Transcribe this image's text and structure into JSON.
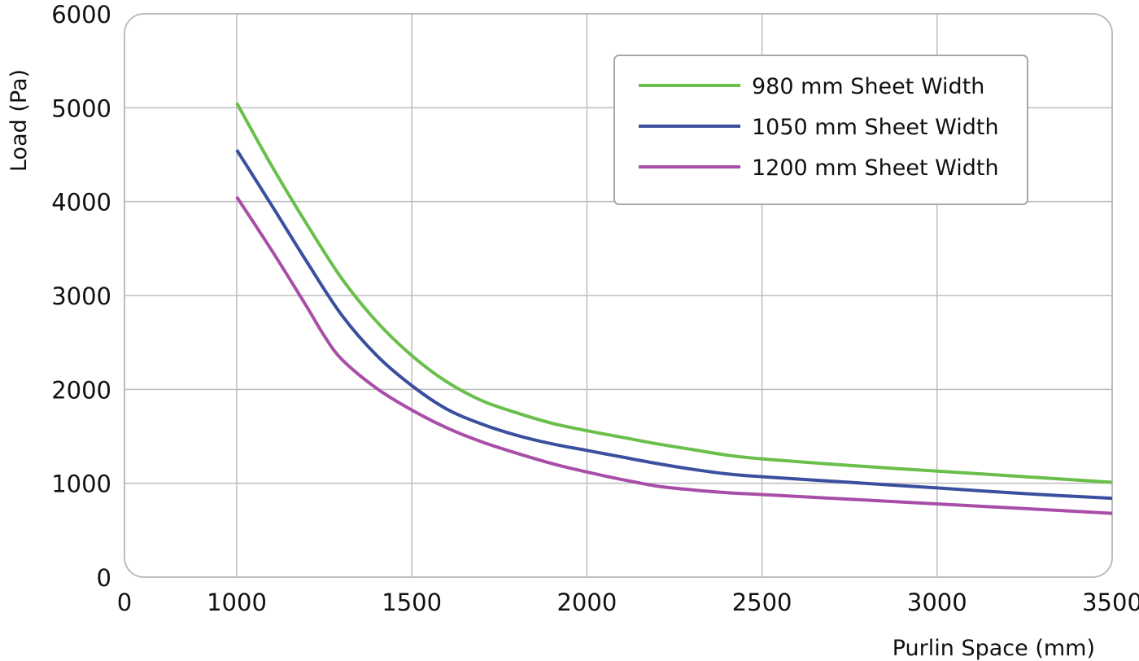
{
  "chart_data": {
    "type": "line",
    "title": "",
    "xlabel": "Purlin Space (mm)",
    "ylabel": "Load (Pa)",
    "xlim": [
      0,
      3500
    ],
    "ylim": [
      0,
      6000
    ],
    "x_ticks": [
      "0",
      "1000",
      "1500",
      "2000",
      "2500",
      "3000",
      "3500"
    ],
    "y_ticks": [
      "0",
      "1000",
      "2000",
      "3000",
      "4000",
      "5000",
      "6000"
    ],
    "grid": true,
    "legend_position": "top-right",
    "series": [
      {
        "name": "980 mm Sheet Width",
        "color": "#6abf4b",
        "x": [
          1000,
          1100,
          1200,
          1300,
          1400,
          1500,
          1600,
          1700,
          1800,
          1900,
          2000,
          2100,
          2200,
          2300,
          2400,
          2500,
          2750,
          3000,
          3250,
          3500
        ],
        "y": [
          5050,
          4380,
          3760,
          3180,
          2720,
          2360,
          2080,
          1880,
          1750,
          1640,
          1560,
          1490,
          1420,
          1360,
          1300,
          1260,
          1190,
          1130,
          1070,
          1010
        ]
      },
      {
        "name": "1050 mm Sheet Width",
        "color": "#3b4f9f",
        "x": [
          1000,
          1100,
          1200,
          1300,
          1400,
          1500,
          1600,
          1700,
          1800,
          1900,
          2000,
          2100,
          2200,
          2300,
          2400,
          2500,
          2750,
          3000,
          3250,
          3500
        ],
        "y": [
          4550,
          3960,
          3360,
          2790,
          2360,
          2040,
          1790,
          1630,
          1510,
          1420,
          1350,
          1280,
          1210,
          1150,
          1100,
          1070,
          1010,
          950,
          890,
          840
        ]
      },
      {
        "name": "1200 mm Sheet Width",
        "color": "#a94ea8",
        "x": [
          1000,
          1100,
          1200,
          1250,
          1300,
          1400,
          1500,
          1600,
          1700,
          1800,
          1900,
          2000,
          2100,
          2200,
          2300,
          2400,
          2500,
          2750,
          3000,
          3250,
          3500
        ],
        "y": [
          4050,
          3480,
          2880,
          2570,
          2320,
          2010,
          1780,
          1590,
          1440,
          1320,
          1210,
          1120,
          1040,
          970,
          930,
          900,
          880,
          830,
          780,
          730,
          680
        ]
      }
    ]
  }
}
